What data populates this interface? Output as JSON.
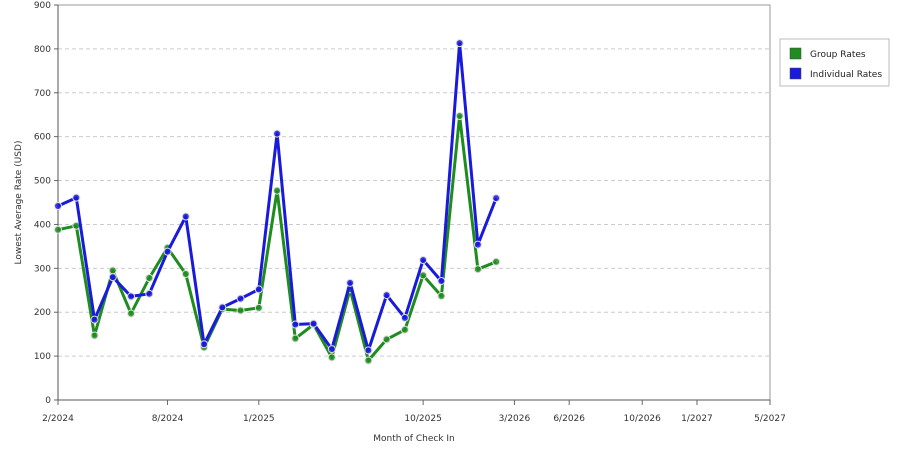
{
  "chart_data": {
    "type": "line",
    "title": "",
    "xlabel": "Month of Check In",
    "ylabel": "Lowest Average Rate (USD)",
    "ylim": [
      0,
      900
    ],
    "yticks": [
      0,
      100,
      200,
      300,
      400,
      500,
      600,
      700,
      800,
      900
    ],
    "x": [
      "2/2024",
      "3/2024",
      "4/2024",
      "5/2024",
      "6/2024",
      "7/2024",
      "8/2024",
      "9/2024",
      "10/2024",
      "11/2024",
      "12/2024",
      "1/2025",
      "2/2025",
      "3/2025",
      "4/2025",
      "5/2025",
      "6/2025",
      "7/2025",
      "8/2025",
      "9/2025",
      "10/2025",
      "11/2025",
      "12/2025",
      "1/2026",
      "2/2026",
      "3/2026",
      "4/2026",
      "5/2026",
      "6/2026",
      "7/2026",
      "8/2026",
      "9/2026",
      "10/2026",
      "11/2026",
      "12/2026",
      "1/2027",
      "2/2027",
      "3/2027",
      "4/2027",
      "5/2027"
    ],
    "xticks": [
      "2/2024",
      "8/2024",
      "1/2025",
      "10/2025",
      "3/2026",
      "6/2026",
      "10/2026",
      "1/2027",
      "5/2027"
    ],
    "series": [
      {
        "name": "Group Rates",
        "color": "#1e8c1e",
        "points": [
          [
            "2/2024",
            388
          ],
          [
            "3/2024",
            397
          ],
          [
            "4/2024",
            147
          ],
          [
            "5/2024",
            295
          ],
          [
            "6/2024",
            197
          ],
          [
            "7/2024",
            278
          ],
          [
            "8/2024",
            347
          ],
          [
            "9/2024",
            287
          ],
          [
            "10/2024",
            120
          ],
          [
            "11/2024",
            207
          ],
          [
            "12/2024",
            204
          ],
          [
            "1/2025",
            210
          ],
          [
            "2/2025",
            477
          ],
          [
            "3/2025",
            140
          ],
          [
            "4/2025",
            172
          ],
          [
            "5/2025",
            97
          ],
          [
            "6/2025",
            252
          ],
          [
            "7/2025",
            90
          ],
          [
            "8/2025",
            138
          ],
          [
            "9/2025",
            160
          ],
          [
            "10/2025",
            284
          ],
          [
            "11/2025",
            237
          ],
          [
            "12/2025",
            647
          ],
          [
            "1/2026",
            298
          ],
          [
            "2/2026",
            315
          ]
        ]
      },
      {
        "name": "Individual Rates",
        "color": "#1a1adc",
        "points": [
          [
            "2/2024",
            442
          ],
          [
            "3/2024",
            461
          ],
          [
            "4/2024",
            183
          ],
          [
            "5/2024",
            280
          ],
          [
            "6/2024",
            236
          ],
          [
            "7/2024",
            242
          ],
          [
            "8/2024",
            338
          ],
          [
            "9/2024",
            418
          ],
          [
            "10/2024",
            127
          ],
          [
            "11/2024",
            211
          ],
          [
            "12/2024",
            231
          ],
          [
            "1/2025",
            252
          ],
          [
            "2/2025",
            607
          ],
          [
            "3/2025",
            172
          ],
          [
            "4/2025",
            174
          ],
          [
            "5/2025",
            116
          ],
          [
            "6/2025",
            267
          ],
          [
            "7/2025",
            113
          ],
          [
            "8/2025",
            239
          ],
          [
            "9/2025",
            187
          ],
          [
            "10/2025",
            319
          ],
          [
            "11/2025",
            271
          ],
          [
            "12/2025",
            813
          ],
          [
            "1/2026",
            354
          ],
          [
            "2/2026",
            460
          ]
        ]
      }
    ],
    "legend": {
      "position": "right",
      "entries": [
        "Group Rates",
        "Individual Rates"
      ]
    },
    "grid": true
  }
}
